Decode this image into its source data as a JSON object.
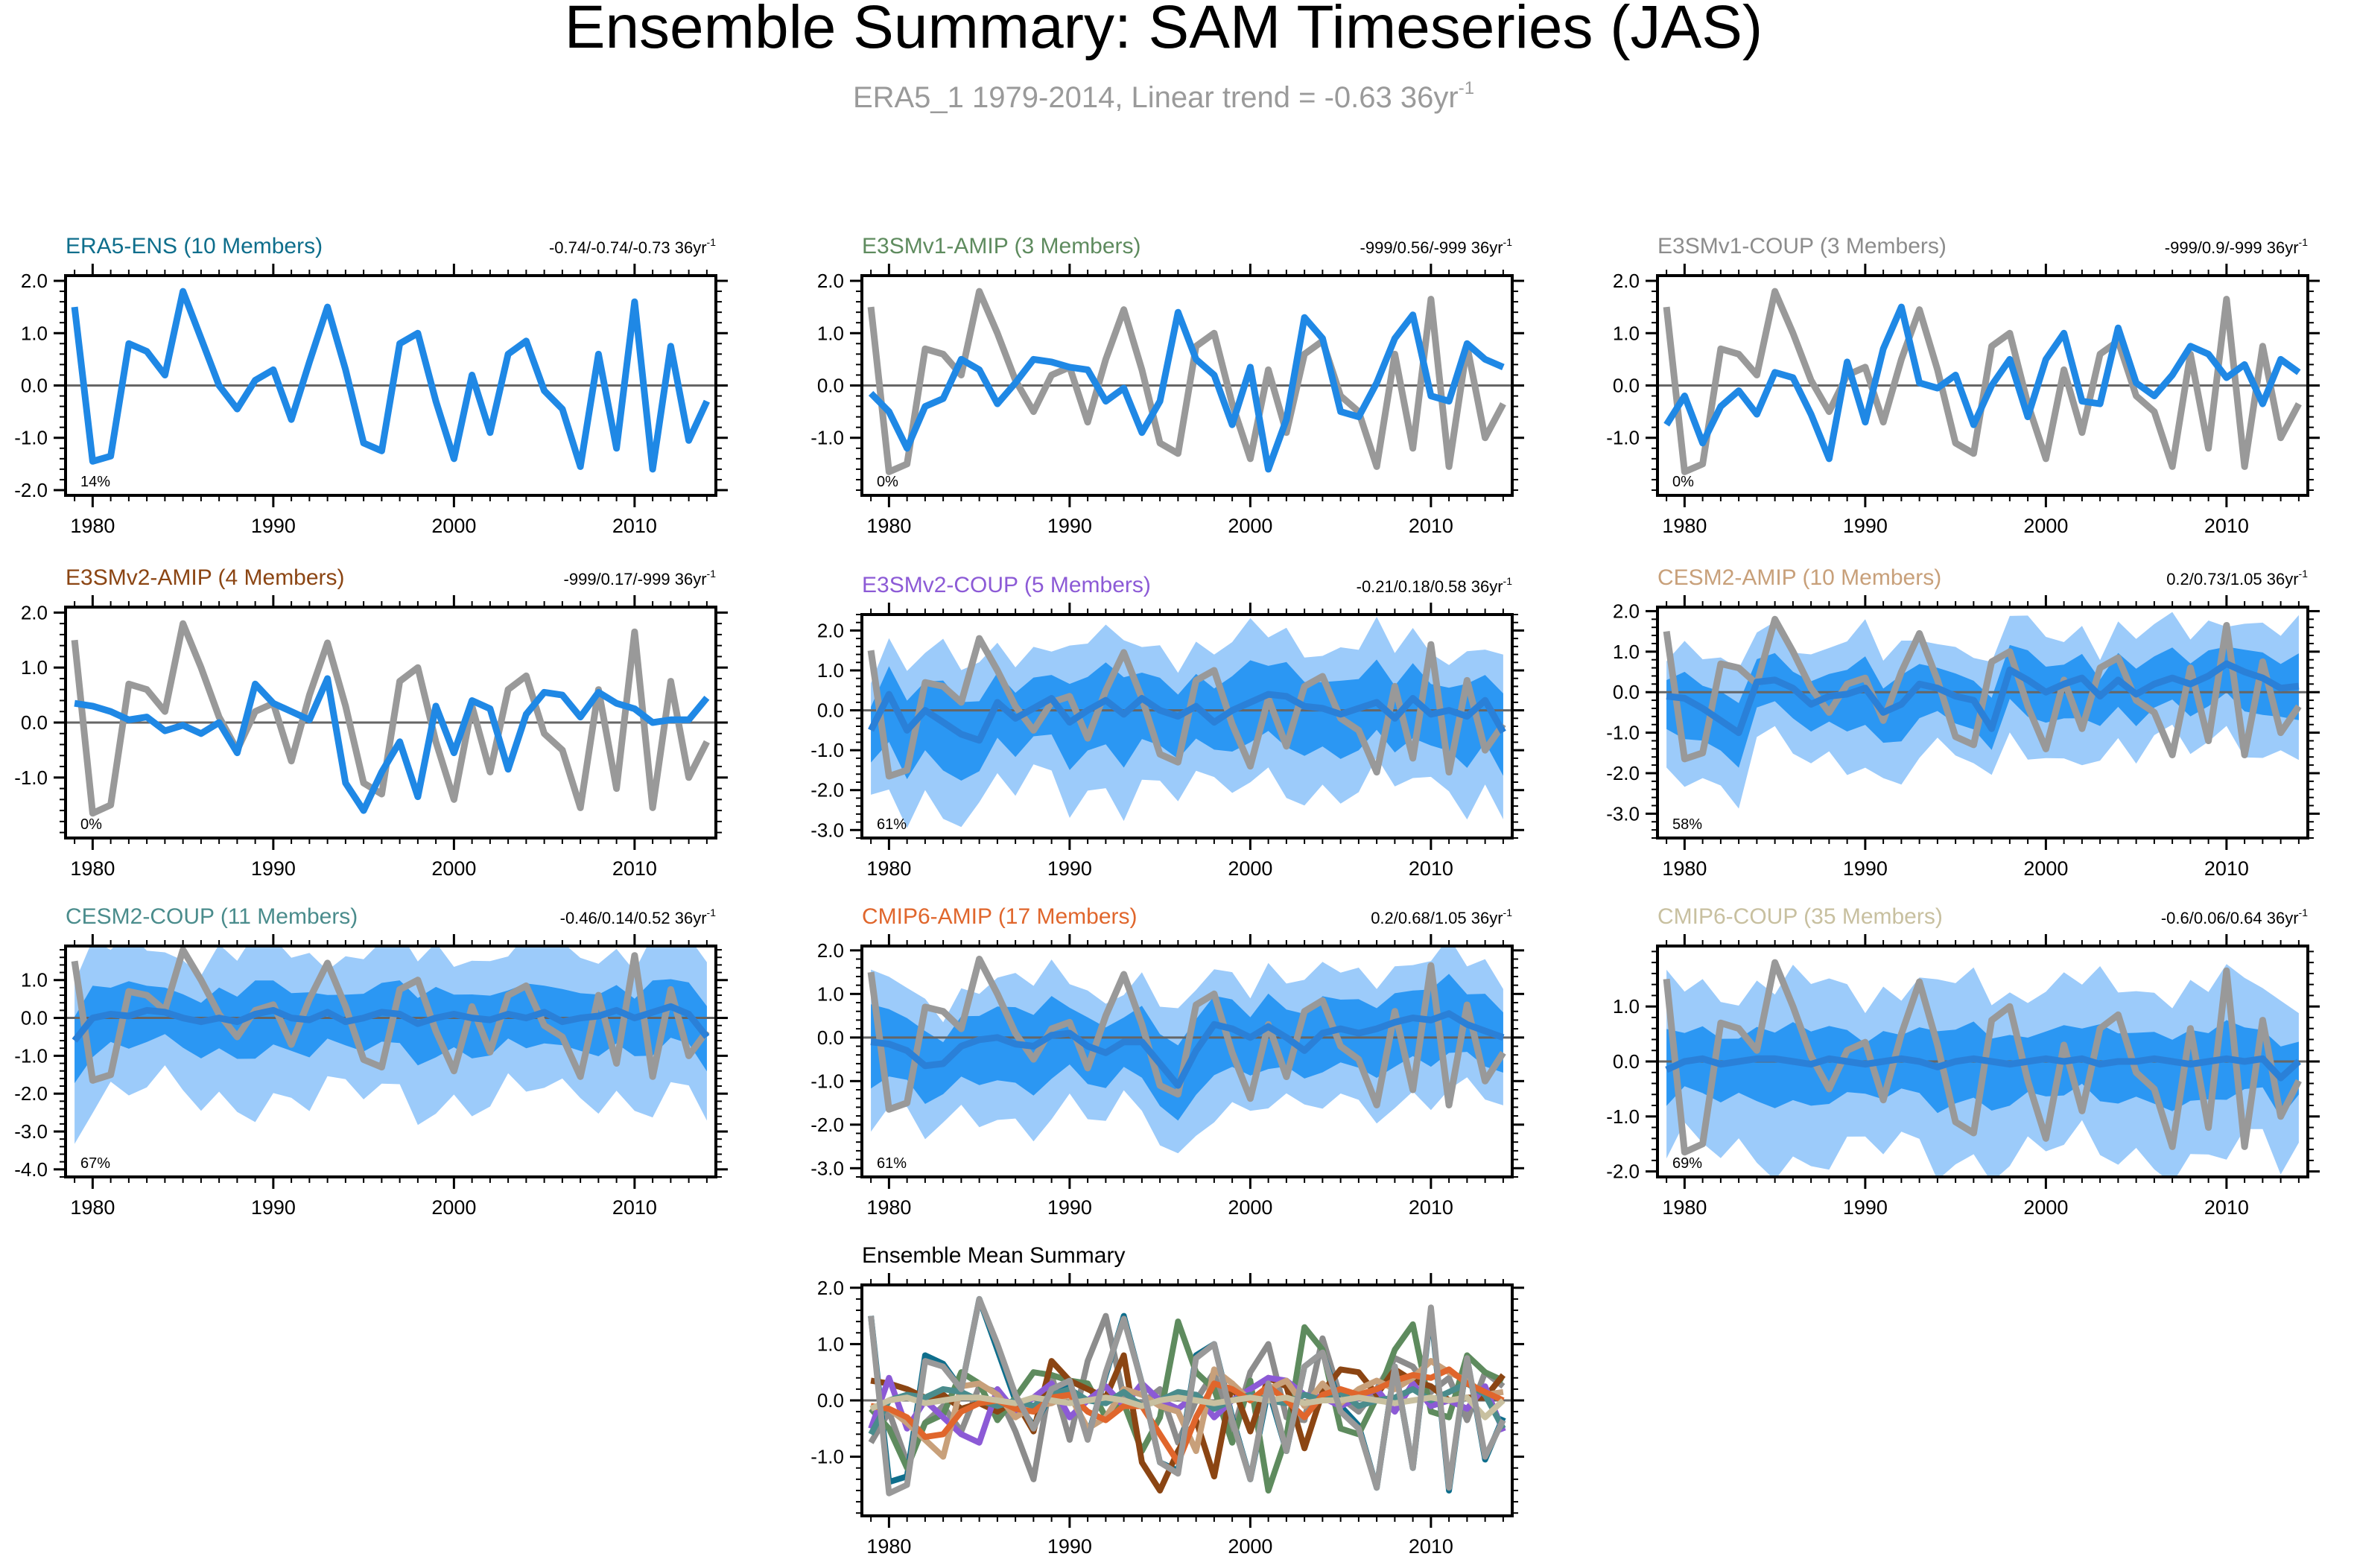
{
  "figure": {
    "title": "Ensemble Summary: SAM Timeseries (JAS)",
    "subtitle": "ERA5_1 1979-2014, Linear trend = -0.63 36yr",
    "subtitle_sup": "-1",
    "colors": {
      "obs_line": "#999999",
      "ens_mean": "#1f88e5",
      "band_outer": "#9ccbfa",
      "band_inner": "#2b97f3",
      "zero_line": "#666666"
    },
    "years_start": 1979
  },
  "chart_data": [
    {
      "type": "line",
      "title": "ERA5-ENS (10 Members)",
      "title_color": "#0e6e8c",
      "trend": "-0.74/-0.74/-0.73 36yr",
      "trend_sup": "-1",
      "percent": "14%",
      "ylim": [
        -2.1,
        2.1
      ],
      "yticks": [
        -2.0,
        -1.0,
        0.0,
        1.0,
        2.0
      ],
      "ytick_labels": [
        "-2.0",
        "-1.0",
        "0.0",
        "1.0",
        "2.0"
      ],
      "xlim": [
        1978.5,
        2014.5
      ],
      "xticks": [
        1980,
        1990,
        2000,
        2010
      ],
      "xtick_labels": [
        "1980",
        "1990",
        "2000",
        "2010"
      ],
      "show_obs": false,
      "show_bands": false,
      "ens_mean": [
        1.5,
        -1.45,
        -1.35,
        0.8,
        0.65,
        0.2,
        1.8,
        0.9,
        0.0,
        -0.45,
        0.1,
        0.3,
        -0.65,
        0.45,
        1.5,
        0.3,
        -1.1,
        -1.25,
        0.8,
        1.0,
        -0.3,
        -1.4,
        0.2,
        -0.9,
        0.6,
        0.85,
        -0.1,
        -0.45,
        -1.55,
        0.6,
        -1.2,
        1.6,
        -1.6,
        0.75,
        -1.05,
        -0.3
      ]
    },
    {
      "type": "line",
      "title": "E3SMv1-AMIP (3 Members)",
      "title_color": "#5e8b5e",
      "trend": "-999/0.56/-999 36yr",
      "trend_sup": "-1",
      "percent": "0%",
      "ylim": [
        -2.1,
        2.1
      ],
      "yticks": [
        -1.0,
        0.0,
        1.0,
        2.0
      ],
      "ytick_labels": [
        "-1.0",
        "0.0",
        "1.0",
        "2.0"
      ],
      "xlim": [
        1978.5,
        2014.5
      ],
      "xticks": [
        1980,
        1990,
        2000,
        2010
      ],
      "xtick_labels": [
        "1980",
        "1990",
        "2000",
        "2010"
      ],
      "show_obs": true,
      "show_bands": false,
      "ens_mean": [
        -0.15,
        -0.5,
        -1.2,
        -0.4,
        -0.25,
        0.5,
        0.3,
        -0.35,
        0.05,
        0.5,
        0.45,
        0.35,
        0.3,
        -0.3,
        -0.05,
        -0.9,
        -0.3,
        1.4,
        0.5,
        0.2,
        -0.75,
        0.35,
        -1.6,
        -0.65,
        1.3,
        0.9,
        -0.5,
        -0.6,
        0.05,
        0.9,
        1.35,
        -0.2,
        -0.3,
        0.8,
        0.5,
        0.35
      ]
    },
    {
      "type": "line",
      "title": "E3SMv1-COUP (3 Members)",
      "title_color": "#8c8c8c",
      "trend": "-999/0.9/-999 36yr",
      "trend_sup": "-1",
      "percent": "0%",
      "ylim": [
        -2.1,
        2.1
      ],
      "yticks": [
        -1.0,
        0.0,
        1.0,
        2.0
      ],
      "ytick_labels": [
        "-1.0",
        "0.0",
        "1.0",
        "2.0"
      ],
      "xlim": [
        1978.5,
        2014.5
      ],
      "xticks": [
        1980,
        1990,
        2000,
        2010
      ],
      "xtick_labels": [
        "1980",
        "1990",
        "2000",
        "2010"
      ],
      "show_obs": true,
      "show_bands": false,
      "ens_mean": [
        -0.75,
        -0.2,
        -1.1,
        -0.4,
        -0.1,
        -0.55,
        0.25,
        0.15,
        -0.55,
        -1.4,
        0.45,
        -0.7,
        0.7,
        1.5,
        0.05,
        -0.05,
        0.2,
        -0.75,
        0.0,
        0.5,
        -0.6,
        0.5,
        1.0,
        -0.3,
        -0.35,
        1.1,
        0.05,
        -0.2,
        0.2,
        0.75,
        0.6,
        0.15,
        0.4,
        -0.35,
        0.5,
        0.25
      ]
    },
    {
      "type": "line",
      "title": "E3SMv2-AMIP (4 Members)",
      "title_color": "#8b4513",
      "trend": "-999/0.17/-999 36yr",
      "trend_sup": "-1",
      "percent": "0%",
      "ylim": [
        -2.1,
        2.1
      ],
      "yticks": [
        -1.0,
        0.0,
        1.0,
        2.0
      ],
      "ytick_labels": [
        "-1.0",
        "0.0",
        "1.0",
        "2.0"
      ],
      "xlim": [
        1978.5,
        2014.5
      ],
      "xticks": [
        1980,
        1990,
        2000,
        2010
      ],
      "xtick_labels": [
        "1980",
        "1990",
        "2000",
        "2010"
      ],
      "show_obs": true,
      "show_bands": false,
      "ens_mean": [
        0.35,
        0.3,
        0.2,
        0.05,
        0.1,
        -0.15,
        -0.05,
        -0.2,
        0.0,
        -0.55,
        0.7,
        0.35,
        0.2,
        0.05,
        0.8,
        -1.1,
        -1.6,
        -0.9,
        -0.35,
        -1.35,
        0.3,
        -0.55,
        0.4,
        0.25,
        -0.85,
        0.15,
        0.55,
        0.5,
        0.1,
        0.55,
        0.35,
        0.25,
        0.0,
        0.05,
        0.05,
        0.45
      ]
    },
    {
      "type": "line",
      "title": "E3SMv2-COUP (5 Members)",
      "title_color": "#8c5ad6",
      "trend": "-0.21/0.18/0.58 36yr",
      "trend_sup": "-1",
      "percent": "61%",
      "ylim": [
        -3.2,
        2.4
      ],
      "yticks": [
        -3.0,
        -2.0,
        -1.0,
        0.0,
        1.0,
        2.0
      ],
      "ytick_labels": [
        "-3.0",
        "-2.0",
        "-1.0",
        "0.0",
        "1.0",
        "2.0"
      ],
      "xlim": [
        1978.5,
        2014.5
      ],
      "xticks": [
        1980,
        1990,
        2000,
        2010
      ],
      "xtick_labels": [
        "1980",
        "1990",
        "2000",
        "2010"
      ],
      "show_obs": true,
      "show_bands": true,
      "band_outer": 1.6,
      "band_inner": 0.8,
      "ens_mean": [
        -0.5,
        0.4,
        -0.5,
        0.0,
        -0.3,
        -0.6,
        -0.75,
        0.2,
        -0.2,
        0.05,
        0.3,
        -0.3,
        0.0,
        0.25,
        -0.1,
        0.3,
        0.0,
        -0.15,
        0.1,
        -0.3,
        0.0,
        0.2,
        0.4,
        0.35,
        0.1,
        0.05,
        -0.1,
        0.05,
        0.2,
        -0.2,
        0.3,
        -0.1,
        0.0,
        -0.15,
        0.25,
        -0.55
      ]
    },
    {
      "type": "line",
      "title": "CESM2-AMIP (10 Members)",
      "title_color": "#c8a07a",
      "trend": "0.2/0.73/1.05 36yr",
      "trend_sup": "-1",
      "percent": "58%",
      "ylim": [
        -3.6,
        2.1
      ],
      "yticks": [
        -3.0,
        -2.0,
        -1.0,
        0.0,
        1.0,
        2.0
      ],
      "ytick_labels": [
        "-3.0",
        "-2.0",
        "-1.0",
        "0.0",
        "1.0",
        "2.0"
      ],
      "xlim": [
        1978.5,
        2014.5
      ],
      "xticks": [
        1980,
        1990,
        2000,
        2010
      ],
      "xtick_labels": [
        "1980",
        "1990",
        "2000",
        "2010"
      ],
      "show_obs": true,
      "show_bands": true,
      "band_outer": 1.3,
      "band_inner": 0.6,
      "ens_mean": [
        -0.1,
        -0.15,
        -0.4,
        -0.7,
        -1.0,
        0.25,
        0.3,
        0.1,
        -0.3,
        -0.1,
        -0.05,
        0.1,
        -0.5,
        -0.3,
        0.2,
        0.1,
        -0.1,
        -0.2,
        -0.9,
        0.55,
        0.3,
        0.0,
        0.2,
        0.35,
        -0.1,
        0.3,
        -0.05,
        0.2,
        0.35,
        0.2,
        0.4,
        0.7,
        0.5,
        0.35,
        0.1,
        0.15
      ]
    },
    {
      "type": "line",
      "title": "CESM2-COUP (11 Members)",
      "title_color": "#4a8c8c",
      "trend": "-0.46/0.14/0.52 36yr",
      "trend_sup": "-1",
      "percent": "67%",
      "ylim": [
        -4.2,
        1.9
      ],
      "yticks": [
        -4.0,
        -3.0,
        -2.0,
        -1.0,
        0.0,
        1.0
      ],
      "ytick_labels": [
        "-4.0",
        "-3.0",
        "-2.0",
        "-1.0",
        "0.0",
        "1.0"
      ],
      "xlim": [
        1978.5,
        2014.5
      ],
      "xticks": [
        1980,
        1990,
        2000,
        2010
      ],
      "xtick_labels": [
        "1980",
        "1990",
        "2000",
        "2010"
      ],
      "show_obs": true,
      "show_bands": true,
      "band_outer": 1.7,
      "band_inner": 0.7,
      "ens_mean": [
        -0.6,
        0.0,
        0.1,
        0.05,
        0.2,
        0.15,
        0.0,
        -0.1,
        0.0,
        -0.1,
        0.1,
        0.2,
        0.0,
        -0.05,
        0.15,
        -0.1,
        0.0,
        0.15,
        0.1,
        -0.15,
        0.0,
        0.1,
        0.0,
        -0.05,
        0.1,
        0.0,
        0.15,
        -0.1,
        0.0,
        0.05,
        0.2,
        0.0,
        0.15,
        0.3,
        0.1,
        -0.5
      ]
    },
    {
      "type": "line",
      "title": "CMIP6-AMIP (17 Members)",
      "title_color": "#e0662c",
      "trend": "0.2/0.68/1.05 36yr",
      "trend_sup": "-1",
      "percent": "61%",
      "ylim": [
        -3.2,
        2.1
      ],
      "yticks": [
        -3.0,
        -2.0,
        -1.0,
        0.0,
        1.0,
        2.0
      ],
      "ytick_labels": [
        "-3.0",
        "-2.0",
        "-1.0",
        "0.0",
        "1.0",
        "2.0"
      ],
      "xlim": [
        1978.5,
        2014.5
      ],
      "xticks": [
        1980,
        1990,
        2000,
        2010
      ],
      "xtick_labels": [
        "1980",
        "1990",
        "2000",
        "2010"
      ],
      "show_obs": true,
      "show_bands": true,
      "band_outer": 1.35,
      "band_inner": 0.7,
      "ens_mean": [
        -0.1,
        -0.15,
        -0.3,
        -0.65,
        -0.6,
        -0.2,
        -0.05,
        0.0,
        -0.15,
        -0.2,
        0.05,
        0.1,
        -0.2,
        -0.35,
        -0.1,
        -0.1,
        -0.6,
        -1.1,
        -0.3,
        0.3,
        0.2,
        0.0,
        0.25,
        0.0,
        -0.3,
        0.1,
        0.2,
        0.1,
        0.2,
        0.35,
        0.45,
        0.4,
        0.55,
        0.3,
        0.15,
        0.0
      ]
    },
    {
      "type": "line",
      "title": "CMIP6-COUP (35 Members)",
      "title_color": "#c8c0a0",
      "trend": "-0.6/0.06/0.64 36yr",
      "trend_sup": "-1",
      "percent": "69%",
      "ylim": [
        -2.1,
        2.1
      ],
      "yticks": [
        -2.0,
        -1.0,
        0.0,
        1.0
      ],
      "ytick_labels": [
        "-2.0",
        "-1.0",
        "0.0",
        "1.0"
      ],
      "xlim": [
        1978.5,
        2014.5
      ],
      "xticks": [
        1980,
        1990,
        2000,
        2010
      ],
      "xtick_labels": [
        "1980",
        "1990",
        "2000",
        "2010"
      ],
      "show_obs": true,
      "show_bands": true,
      "band_outer": 1.35,
      "band_inner": 0.55,
      "ens_mean": [
        -0.15,
        0.0,
        0.05,
        -0.05,
        0.0,
        0.05,
        0.05,
        0.0,
        -0.05,
        0.05,
        0.0,
        -0.05,
        0.0,
        0.05,
        0.0,
        -0.1,
        0.0,
        0.05,
        0.0,
        -0.05,
        0.0,
        0.05,
        0.0,
        0.05,
        -0.05,
        0.0,
        0.0,
        0.05,
        0.0,
        -0.05,
        0.0,
        0.05,
        0.0,
        0.05,
        -0.3,
        0.0
      ]
    }
  ],
  "obs_series": [
    1.5,
    -1.65,
    -1.5,
    0.7,
    0.6,
    0.2,
    1.8,
    1.0,
    0.1,
    -0.5,
    0.2,
    0.35,
    -0.7,
    0.5,
    1.45,
    0.3,
    -1.1,
    -1.3,
    0.75,
    1.0,
    -0.35,
    -1.4,
    0.3,
    -0.9,
    0.6,
    0.85,
    -0.2,
    -0.5,
    -1.55,
    0.6,
    -1.2,
    1.65,
    -1.55,
    0.75,
    -1.0,
    -0.35
  ],
  "summary": {
    "title": "Ensemble Mean Summary",
    "ylim": [
      -2.05,
      2.05
    ],
    "yticks": [
      -1.0,
      0.0,
      1.0,
      2.0
    ],
    "ytick_labels": [
      "-1.0",
      "0.0",
      "1.0",
      "2.0"
    ],
    "xticks": [
      1980,
      1990,
      2000,
      2010
    ],
    "xtick_labels": [
      "1980",
      "1990",
      "2000",
      "2010"
    ]
  }
}
